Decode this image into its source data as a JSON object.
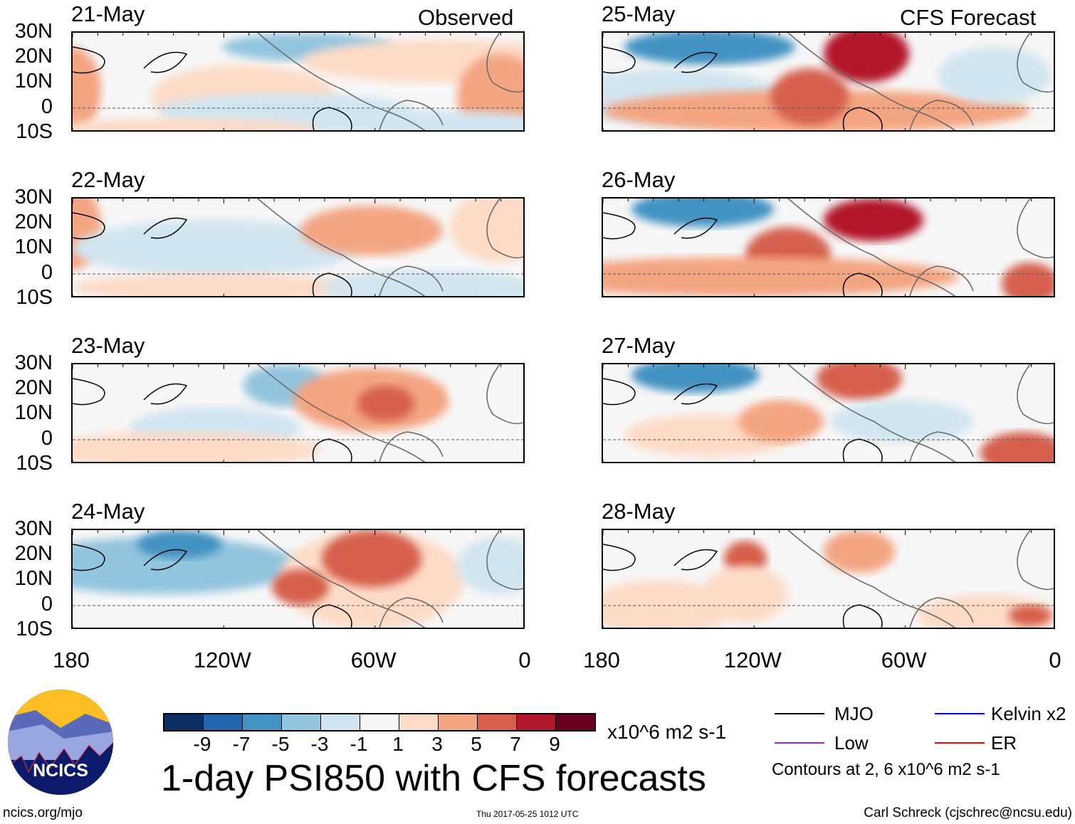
{
  "left_label": "Observed",
  "right_label": "CFS Forecast",
  "panels_left": [
    {
      "date": "21-May"
    },
    {
      "date": "22-May"
    },
    {
      "date": "23-May"
    },
    {
      "date": "24-May"
    }
  ],
  "panels_right": [
    {
      "date": "25-May"
    },
    {
      "date": "26-May"
    },
    {
      "date": "27-May"
    },
    {
      "date": "28-May"
    }
  ],
  "lat_labels": [
    "30N",
    "20N",
    "10N",
    "0",
    "10S"
  ],
  "lon_labels": [
    "180",
    "120W",
    "60W",
    "0"
  ],
  "colorbar": {
    "colors": [
      "#0a2f60",
      "#2166ac",
      "#4393c3",
      "#92c5de",
      "#d1e5f0",
      "#f7f7f7",
      "#fddbc7",
      "#f4a582",
      "#d6604d",
      "#b2182b",
      "#67001f"
    ],
    "labels": [
      "-9",
      "-7",
      "-5",
      "-3",
      "-1",
      "1",
      "3",
      "5",
      "7",
      "9"
    ],
    "units": "x10^6 m2 s-1"
  },
  "title": "1-day PSI850 with CFS forecasts",
  "legend": {
    "items": [
      {
        "label": "MJO",
        "color": "#000000"
      },
      {
        "label": "Kelvin x2",
        "color": "#0000ff"
      },
      {
        "label": "Low",
        "color": "#a020f0"
      },
      {
        "label": "ER",
        "color": "#ff0000"
      }
    ],
    "note": "Contours at 2, 6 x10^6 m2 s-1"
  },
  "logo_text": "NCICS",
  "footer": {
    "url": "ncics.org/mjo",
    "timestamp": "Thu 2017-05-25 1012 UTC",
    "author": "Carl Schreck (cjschrec@ncsu.edu)"
  }
}
